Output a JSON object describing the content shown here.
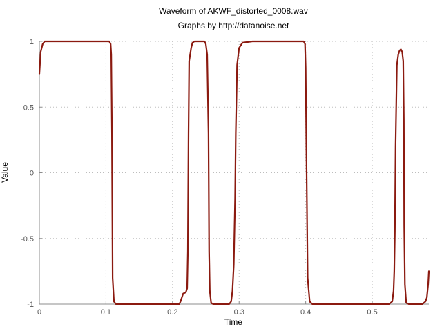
{
  "chart_data": {
    "type": "line",
    "title": "Waveform of AKWF_distorted_0008.wav",
    "subtitle": "Graphs by http://datanoise.net",
    "xlabel": "Time",
    "ylabel": "Value",
    "xlim": [
      0,
      0.585
    ],
    "ylim": [
      -1,
      1
    ],
    "xticks": [
      0,
      0.1,
      0.2,
      0.3,
      0.4,
      0.5
    ],
    "xtick_labels": [
      "0",
      "0.1",
      "0.2",
      "0.3",
      "0.4",
      "0.5"
    ],
    "yticks": [
      1,
      0.5,
      0,
      -0.5,
      -1
    ],
    "ytick_labels": [
      "1",
      "0.5",
      "0",
      "-0.5",
      "-1"
    ],
    "grid": true,
    "series": [
      {
        "color": "#8b1a10",
        "x": [
          0,
          0.002,
          0.005,
          0.008,
          0.02,
          0.05,
          0.1,
          0.105,
          0.107,
          0.108,
          0.109,
          0.11,
          0.112,
          0.115,
          0.13,
          0.2,
          0.21,
          0.212,
          0.214,
          0.216,
          0.22,
          0.222,
          0.223,
          0.224,
          0.225,
          0.228,
          0.23,
          0.233,
          0.24,
          0.248,
          0.25,
          0.252,
          0.254,
          0.255,
          0.256,
          0.258,
          0.261,
          0.265,
          0.28,
          0.285,
          0.288,
          0.29,
          0.292,
          0.294,
          0.295,
          0.297,
          0.3,
          0.305,
          0.32,
          0.35,
          0.39,
          0.397,
          0.399,
          0.4,
          0.401,
          0.403,
          0.406,
          0.41,
          0.43,
          0.5,
          0.525,
          0.53,
          0.532,
          0.533,
          0.534,
          0.535,
          0.537,
          0.539,
          0.541,
          0.543,
          0.545,
          0.5465,
          0.5475,
          0.548,
          0.549,
          0.551,
          0.555,
          0.56,
          0.57,
          0.575,
          0.58,
          0.582,
          0.584,
          0.585
        ],
        "y": [
          0.75,
          0.92,
          0.98,
          1.0,
          1.0,
          1.0,
          1.0,
          1.0,
          0.98,
          0.9,
          0.3,
          -0.8,
          -0.98,
          -1.0,
          -1.0,
          -1.0,
          -1.0,
          -0.98,
          -0.95,
          -0.92,
          -0.91,
          -0.88,
          -0.6,
          0.3,
          0.85,
          0.95,
          0.99,
          1.0,
          1.0,
          1.0,
          0.98,
          0.9,
          0.3,
          -0.6,
          -0.9,
          -0.99,
          -1.0,
          -1.0,
          -1.0,
          -1.0,
          -0.98,
          -0.9,
          -0.7,
          -0.2,
          0.3,
          0.82,
          0.95,
          0.99,
          1.0,
          1.0,
          1.0,
          1.0,
          0.98,
          0.8,
          0.2,
          -0.8,
          -0.98,
          -1.0,
          -1.0,
          -1.0,
          -1.0,
          -0.98,
          -0.9,
          -0.75,
          -0.45,
          0.2,
          0.82,
          0.9,
          0.93,
          0.94,
          0.92,
          0.85,
          0.4,
          -0.4,
          -0.85,
          -0.99,
          -1.0,
          -1.0,
          -1.0,
          -1.0,
          -0.98,
          -0.95,
          -0.85,
          -0.75
        ]
      }
    ]
  }
}
